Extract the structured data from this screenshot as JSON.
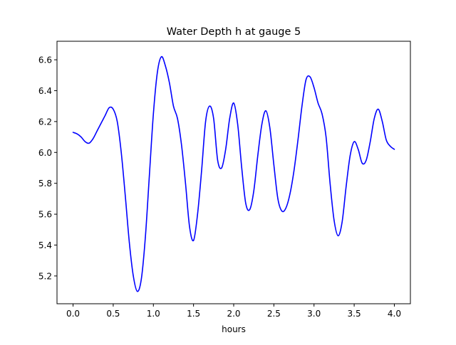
{
  "chart_data": {
    "type": "line",
    "title": "Water Depth h at gauge 5",
    "xlabel": "hours",
    "ylabel": "",
    "xlim": [
      -0.2,
      4.2
    ],
    "ylim": [
      5.02,
      6.72
    ],
    "xticks": [
      0.0,
      0.5,
      1.0,
      1.5,
      2.0,
      2.5,
      3.0,
      3.5,
      4.0
    ],
    "xtick_labels": [
      "0.0",
      "0.5",
      "1.0",
      "1.5",
      "2.0",
      "2.5",
      "3.0",
      "3.5",
      "4.0"
    ],
    "yticks": [
      5.2,
      5.4,
      5.6,
      5.8,
      6.0,
      6.2,
      6.4,
      6.6
    ],
    "ytick_labels": [
      "5.2",
      "5.4",
      "5.6",
      "5.8",
      "6.0",
      "6.2",
      "6.4",
      "6.6"
    ],
    "grid": false,
    "series": [
      {
        "color": "#0000ff",
        "x": [
          0.0,
          0.05,
          0.1,
          0.15,
          0.2,
          0.25,
          0.3,
          0.35,
          0.4,
          0.45,
          0.5,
          0.55,
          0.6,
          0.65,
          0.7,
          0.75,
          0.8,
          0.85,
          0.9,
          0.95,
          1.0,
          1.05,
          1.1,
          1.15,
          1.2,
          1.25,
          1.3,
          1.35,
          1.4,
          1.45,
          1.5,
          1.55,
          1.6,
          1.65,
          1.7,
          1.75,
          1.8,
          1.85,
          1.9,
          1.95,
          2.0,
          2.05,
          2.1,
          2.15,
          2.2,
          2.25,
          2.3,
          2.35,
          2.4,
          2.45,
          2.5,
          2.55,
          2.6,
          2.65,
          2.7,
          2.75,
          2.8,
          2.85,
          2.9,
          2.95,
          3.0,
          3.05,
          3.1,
          3.15,
          3.2,
          3.25,
          3.3,
          3.35,
          3.4,
          3.45,
          3.5,
          3.55,
          3.6,
          3.65,
          3.7,
          3.75,
          3.8,
          3.85,
          3.9,
          3.95,
          4.0
        ],
        "y": [
          6.13,
          6.12,
          6.1,
          6.07,
          6.06,
          6.09,
          6.14,
          6.19,
          6.24,
          6.29,
          6.28,
          6.2,
          6.0,
          5.72,
          5.42,
          5.2,
          5.1,
          5.18,
          5.45,
          5.85,
          6.25,
          6.52,
          6.62,
          6.56,
          6.45,
          6.3,
          6.22,
          6.05,
          5.8,
          5.52,
          5.43,
          5.6,
          5.88,
          6.2,
          6.3,
          6.22,
          5.95,
          5.9,
          6.02,
          6.22,
          6.32,
          6.18,
          5.9,
          5.67,
          5.63,
          5.75,
          5.98,
          6.18,
          6.27,
          6.16,
          5.92,
          5.7,
          5.62,
          5.64,
          5.73,
          5.88,
          6.08,
          6.3,
          6.47,
          6.49,
          6.42,
          6.32,
          6.25,
          6.1,
          5.8,
          5.56,
          5.46,
          5.55,
          5.78,
          5.98,
          6.07,
          6.02,
          5.93,
          5.95,
          6.07,
          6.22,
          6.28,
          6.2,
          6.08,
          6.04,
          6.02
        ]
      }
    ]
  }
}
